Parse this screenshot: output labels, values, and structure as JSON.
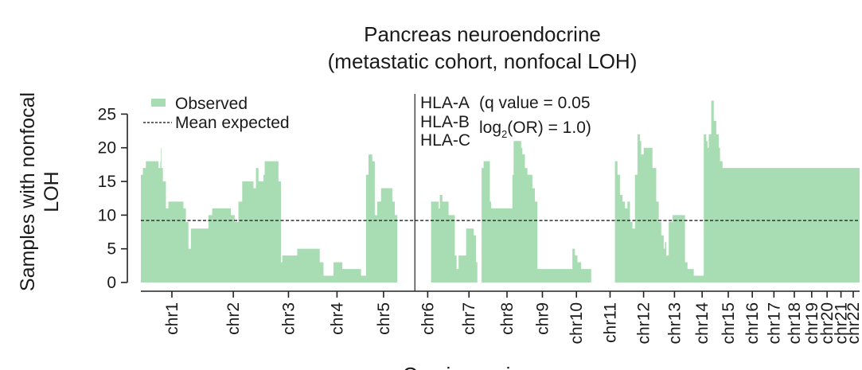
{
  "chart_data": {
    "type": "area",
    "title_lines": [
      "Pancreas neuroendocrine",
      "(metastatic cohort, nonfocal LOH)"
    ],
    "ylabel_lines": [
      "Samples with nonfocal",
      "LOH"
    ],
    "xlabel": "Cervix carcinoma",
    "ylim": [
      0,
      28
    ],
    "yticks": [
      0,
      5,
      10,
      15,
      20,
      25
    ],
    "grid": false,
    "legend": {
      "position": "top-left",
      "observed": "Observed",
      "expected": "Mean expected"
    },
    "mean_expected": 9.2,
    "colors": {
      "observed": "#a8dcb2",
      "expected": "#333333",
      "marker": "#222222"
    },
    "chromosomes": [
      {
        "name": "chr1",
        "start": 0,
        "end": 248
      },
      {
        "name": "chr2",
        "start": 248,
        "end": 491
      },
      {
        "name": "chr3",
        "start": 491,
        "end": 689
      },
      {
        "name": "chr4",
        "start": 689,
        "end": 879
      },
      {
        "name": "chr5",
        "start": 879,
        "end": 1061
      },
      {
        "name": "chr6",
        "start": 1061,
        "end": 1232
      },
      {
        "name": "chr7",
        "start": 1232,
        "end": 1391
      },
      {
        "name": "chr8",
        "start": 1391,
        "end": 1536
      },
      {
        "name": "chr9",
        "start": 1536,
        "end": 1674
      },
      {
        "name": "chr10",
        "start": 1674,
        "end": 1808
      },
      {
        "name": "chr11",
        "start": 1808,
        "end": 1943
      },
      {
        "name": "chr12",
        "start": 1943,
        "end": 2076
      },
      {
        "name": "chr13",
        "start": 2076,
        "end": 2190
      },
      {
        "name": "chr14",
        "start": 2190,
        "end": 2297
      },
      {
        "name": "chr15",
        "start": 2297,
        "end": 2399
      },
      {
        "name": "chr16",
        "start": 2399,
        "end": 2489
      },
      {
        "name": "chr17",
        "start": 2489,
        "end": 2572
      },
      {
        "name": "chr18",
        "start": 2572,
        "end": 2652
      },
      {
        "name": "chr19",
        "start": 2652,
        "end": 2711
      },
      {
        "name": "chr20",
        "start": 2711,
        "end": 2775
      },
      {
        "name": "chr21",
        "start": 2775,
        "end": 2822
      },
      {
        "name": "chr22",
        "start": 2822,
        "end": 2873
      }
    ],
    "observed_steps": [
      [
        0,
        16
      ],
      [
        8,
        17
      ],
      [
        20,
        18
      ],
      [
        70,
        17
      ],
      [
        78,
        18
      ],
      [
        80,
        20
      ],
      [
        82,
        17
      ],
      [
        88,
        15
      ],
      [
        100,
        11
      ],
      [
        110,
        12
      ],
      [
        170,
        11
      ],
      [
        180,
        9
      ],
      [
        190,
        5
      ],
      [
        200,
        8
      ],
      [
        255,
        8
      ],
      [
        270,
        10
      ],
      [
        285,
        11
      ],
      [
        360,
        10
      ],
      [
        375,
        9
      ],
      [
        390,
        12
      ],
      [
        405,
        15
      ],
      [
        450,
        14
      ],
      [
        460,
        17
      ],
      [
        470,
        15
      ],
      [
        490,
        16
      ],
      [
        495,
        18
      ],
      [
        540,
        18
      ],
      [
        550,
        15
      ],
      [
        560,
        3
      ],
      [
        565,
        4
      ],
      [
        620,
        4
      ],
      [
        625,
        5
      ],
      [
        710,
        5
      ],
      [
        715,
        3
      ],
      [
        730,
        1
      ],
      [
        760,
        1
      ],
      [
        770,
        3
      ],
      [
        800,
        3
      ],
      [
        805,
        2
      ],
      [
        830,
        2
      ],
      [
        870,
        2
      ],
      [
        880,
        1
      ],
      [
        885,
        1
      ],
      [
        890,
        1
      ],
      [
        900,
        16
      ],
      [
        910,
        19
      ],
      [
        925,
        18
      ],
      [
        935,
        10
      ],
      [
        945,
        12
      ],
      [
        960,
        14
      ],
      [
        1000,
        14
      ],
      [
        1005,
        12
      ],
      [
        1015,
        10
      ],
      [
        1025,
        0
      ],
      [
        1160,
        12
      ],
      [
        1190,
        11
      ],
      [
        1195,
        13
      ],
      [
        1205,
        12
      ],
      [
        1230,
        10
      ],
      [
        1240,
        10
      ],
      [
        1255,
        4
      ],
      [
        1262,
        2
      ],
      [
        1270,
        4
      ],
      [
        1290,
        4
      ],
      [
        1300,
        8
      ],
      [
        1330,
        7
      ],
      [
        1340,
        3
      ],
      [
        1345,
        0
      ],
      [
        1362,
        17
      ],
      [
        1370,
        18
      ],
      [
        1395,
        12
      ],
      [
        1400,
        11
      ],
      [
        1420,
        11
      ],
      [
        1480,
        11
      ],
      [
        1485,
        16
      ],
      [
        1490,
        21
      ],
      [
        1520,
        20
      ],
      [
        1525,
        19
      ],
      [
        1535,
        17
      ],
      [
        1545,
        16
      ],
      [
        1565,
        14
      ],
      [
        1575,
        12
      ],
      [
        1585,
        2
      ],
      [
        1700,
        2
      ],
      [
        1725,
        5
      ],
      [
        1735,
        4
      ],
      [
        1745,
        3
      ],
      [
        1760,
        2
      ],
      [
        1790,
        2
      ],
      [
        1800,
        0
      ],
      [
        1895,
        18
      ],
      [
        1905,
        16
      ],
      [
        1915,
        13
      ],
      [
        1925,
        12
      ],
      [
        1935,
        11
      ],
      [
        1945,
        12
      ],
      [
        1955,
        9
      ],
      [
        1965,
        8
      ],
      [
        1975,
        16
      ],
      [
        1985,
        22
      ],
      [
        1995,
        21
      ],
      [
        2000,
        19
      ],
      [
        2010,
        20
      ],
      [
        2045,
        17
      ],
      [
        2060,
        12
      ],
      [
        2070,
        9
      ],
      [
        2080,
        7
      ],
      [
        2090,
        5
      ],
      [
        2095,
        6
      ],
      [
        2100,
        4
      ],
      [
        2110,
        9
      ],
      [
        2125,
        10
      ],
      [
        2175,
        3
      ],
      [
        2185,
        2
      ],
      [
        2200,
        2
      ],
      [
        2210,
        1
      ],
      [
        2230,
        1
      ],
      [
        2245,
        1
      ],
      [
        2250,
        22
      ],
      [
        2260,
        21
      ],
      [
        2265,
        20
      ],
      [
        2270,
        22
      ],
      [
        2280,
        27
      ],
      [
        2290,
        24
      ],
      [
        2300,
        22
      ],
      [
        2310,
        20
      ],
      [
        2315,
        18
      ],
      [
        2325,
        17
      ],
      [
        2335,
        17
      ]
    ],
    "annotation": {
      "genes": [
        "HLA-A",
        "HLA-B",
        "HLA-C"
      ],
      "stat_line1": "(q value = 0.05",
      "stat_line2_prefix": "log",
      "stat_line2_sub": "2",
      "stat_line2_suffix": "(OR) = 1.0)"
    }
  }
}
